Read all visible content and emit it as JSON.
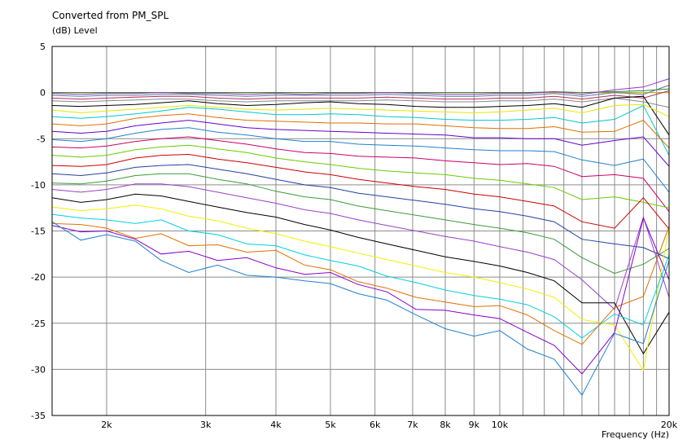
{
  "chart_data": {
    "type": "line",
    "title": "Converted from PM_SPL",
    "ylabel": "(dB)  Level",
    "xlabel": "Frequency  (Hz)",
    "xscale": "log",
    "xlim": [
      1600,
      20000
    ],
    "ylim": [
      -35,
      5
    ],
    "grid": true,
    "x_tick_labels": [
      {
        "value": 2000,
        "label": "2k"
      },
      {
        "value": 3000,
        "label": "3k"
      },
      {
        "value": 4000,
        "label": "4k"
      },
      {
        "value": 5000,
        "label": "5k"
      },
      {
        "value": 6000,
        "label": "6k"
      },
      {
        "value": 7000,
        "label": "7k"
      },
      {
        "value": 8000,
        "label": "8k"
      },
      {
        "value": 9000,
        "label": "9k"
      },
      {
        "value": 10000,
        "label": "10k"
      },
      {
        "value": 20000,
        "label": "20k"
      }
    ],
    "y_ticks": [
      5,
      0,
      -5,
      -10,
      -15,
      -20,
      -25,
      -30,
      -35
    ],
    "x": [
      1600,
      1800,
      2000,
      2250,
      2500,
      2800,
      3150,
      3550,
      4000,
      4500,
      5000,
      5600,
      6300,
      7100,
      8000,
      9000,
      10000,
      11200,
      12500,
      14000,
      16000,
      18000,
      20000
    ],
    "series": [
      {
        "name": "s1",
        "color": "#d4b000",
        "values": [
          0,
          0,
          0,
          0,
          0,
          0,
          0,
          0,
          0,
          0,
          0,
          0,
          0,
          0,
          0,
          0,
          0,
          0,
          0,
          0,
          0,
          0,
          0
        ]
      },
      {
        "name": "s2",
        "color": "#2a8a2a",
        "values": [
          0,
          0,
          0,
          0,
          0,
          0,
          0,
          0,
          0,
          0,
          0,
          0,
          0,
          0,
          0,
          0,
          0,
          0,
          0.1,
          0,
          0.1,
          0.2,
          0.4
        ]
      },
      {
        "name": "s3",
        "color": "#9933cc",
        "values": [
          -0.1,
          -0.2,
          -0.1,
          -0.1,
          0,
          -0.1,
          -0.1,
          -0.2,
          -0.1,
          -0.2,
          -0.1,
          -0.1,
          0,
          -0.1,
          -0.2,
          -0.2,
          -0.1,
          -0.1,
          0.1,
          -0.2,
          0.3,
          0.6,
          1.5
        ]
      },
      {
        "name": "s4",
        "color": "#5a7a9a",
        "values": [
          -0.3,
          -0.4,
          -0.3,
          -0.3,
          -0.2,
          -0.2,
          -0.3,
          -0.4,
          -0.3,
          -0.3,
          -0.3,
          -0.3,
          -0.2,
          -0.3,
          -0.4,
          -0.4,
          -0.3,
          -0.3,
          -0.1,
          -0.4,
          0,
          -0.2,
          0.8
        ]
      },
      {
        "name": "s5",
        "color": "#b03060",
        "values": [
          -0.6,
          -0.7,
          -0.6,
          -0.5,
          -0.4,
          -0.4,
          -0.6,
          -0.7,
          -0.6,
          -0.6,
          -0.6,
          -0.6,
          -0.5,
          -0.6,
          -0.7,
          -0.7,
          -0.6,
          -0.6,
          -0.4,
          -0.7,
          -0.3,
          -0.6,
          0.2
        ]
      },
      {
        "name": "s6",
        "color": "#888888",
        "values": [
          -0.9,
          -1.0,
          -0.9,
          -0.8,
          -0.7,
          -0.7,
          -0.9,
          -1.0,
          -0.9,
          -0.9,
          -0.9,
          -0.9,
          -0.8,
          -0.9,
          -1.0,
          -1.0,
          -0.9,
          -0.9,
          -0.7,
          -1.0,
          -0.6,
          -1.0,
          -1.6
        ]
      },
      {
        "name": "s7",
        "color": "#000000",
        "values": [
          -1.4,
          -1.5,
          -1.4,
          -1.3,
          -1.1,
          -0.9,
          -1.2,
          -1.4,
          -1.3,
          -1.1,
          -1.0,
          -1.2,
          -1.3,
          -1.5,
          -1.6,
          -1.6,
          -1.5,
          -1.4,
          -1.2,
          -1.6,
          -0.6,
          -0.4,
          -4.6
        ]
      },
      {
        "name": "s8",
        "color": "#e6e600",
        "values": [
          -1.9,
          -2.2,
          -2.0,
          -1.8,
          -1.6,
          -1.4,
          -1.6,
          -1.8,
          -1.9,
          -1.8,
          -1.7,
          -1.8,
          -1.9,
          -2.0,
          -2.1,
          -2.2,
          -2.1,
          -1.9,
          -1.7,
          -2.2,
          -1.4,
          -1.3,
          -2.6
        ]
      },
      {
        "name": "s9",
        "color": "#00c8d0",
        "values": [
          -2.6,
          -2.8,
          -2.6,
          -2.3,
          -2.0,
          -1.6,
          -1.8,
          -2.1,
          -2.4,
          -2.4,
          -2.3,
          -2.4,
          -2.6,
          -2.7,
          -2.9,
          -3.0,
          -3.0,
          -2.9,
          -2.7,
          -3.3,
          -2.9,
          -1.4,
          -6.8
        ]
      },
      {
        "name": "s10",
        "color": "#e07000",
        "values": [
          -3.4,
          -3.6,
          -3.4,
          -2.8,
          -2.5,
          -2.3,
          -2.7,
          -3.0,
          -3.1,
          -3.2,
          -3.3,
          -3.3,
          -3.4,
          -3.4,
          -3.6,
          -3.8,
          -3.9,
          -3.9,
          -3.7,
          -4.3,
          -4.2,
          -3.0,
          -6.0
        ]
      },
      {
        "name": "s11",
        "color": "#6600cc",
        "values": [
          -4.2,
          -4.4,
          -4.2,
          -3.6,
          -3.3,
          -3.0,
          -3.4,
          -3.8,
          -4.0,
          -4.1,
          -4.2,
          -4.3,
          -4.4,
          -4.5,
          -4.6,
          -4.9,
          -4.9,
          -5.0,
          -5.0,
          -5.7,
          -5.2,
          -4.8,
          -8.0
        ]
      },
      {
        "name": "s12",
        "color": "#2080d0",
        "values": [
          -5.1,
          -5.3,
          -5.0,
          -4.4,
          -4.0,
          -3.8,
          -4.3,
          -4.6,
          -5.0,
          -5.3,
          -5.3,
          -5.6,
          -5.7,
          -5.8,
          -6.0,
          -6.2,
          -6.3,
          -6.3,
          -6.4,
          -7.3,
          -7.9,
          -7.2,
          -10.8
        ]
      },
      {
        "name": "s13",
        "color": "#cc0066",
        "values": [
          -5.9,
          -6.0,
          -5.8,
          -5.3,
          -5.0,
          -4.8,
          -5.2,
          -5.6,
          -6.1,
          -6.5,
          -6.6,
          -6.9,
          -7.0,
          -7.1,
          -7.4,
          -7.6,
          -7.8,
          -7.7,
          -8.0,
          -9.1,
          -8.9,
          -9.3,
          -12.9
        ]
      },
      {
        "name": "s14",
        "color": "#66cc00",
        "values": [
          -6.8,
          -7.0,
          -6.8,
          -6.2,
          -5.9,
          -5.7,
          -6.1,
          -6.5,
          -7.1,
          -7.5,
          -7.8,
          -8.2,
          -8.5,
          -8.7,
          -8.9,
          -9.3,
          -9.5,
          -9.9,
          -10.3,
          -11.6,
          -11.3,
          -11.9,
          -12.5
        ]
      },
      {
        "name": "s15",
        "color": "#cc0000",
        "values": [
          -7.9,
          -8.0,
          -7.8,
          -7.1,
          -6.8,
          -6.7,
          -7.2,
          -7.6,
          -8.1,
          -8.6,
          -8.9,
          -9.4,
          -9.8,
          -10.2,
          -10.5,
          -11.0,
          -11.3,
          -11.8,
          -12.3,
          -14.0,
          -14.7,
          -11.4,
          -14.8
        ]
      },
      {
        "name": "s16",
        "color": "#2040a0",
        "values": [
          -8.8,
          -9.0,
          -8.7,
          -8.1,
          -7.9,
          -7.8,
          -8.3,
          -8.8,
          -9.4,
          -10.0,
          -10.3,
          -10.9,
          -11.3,
          -11.7,
          -12.1,
          -12.6,
          -12.9,
          -13.4,
          -14.0,
          -15.9,
          -16.4,
          -16.8,
          -18.0
        ]
      },
      {
        "name": "s17",
        "color": "#3a9a3a",
        "values": [
          -9.8,
          -9.9,
          -9.6,
          -9.0,
          -8.8,
          -8.8,
          -9.4,
          -9.9,
          -10.7,
          -11.3,
          -11.6,
          -12.3,
          -12.8,
          -13.3,
          -13.8,
          -14.3,
          -14.7,
          -15.2,
          -15.9,
          -17.9,
          -19.6,
          -18.6,
          -16.9
        ]
      },
      {
        "name": "s18",
        "color": "#9a40c8",
        "values": [
          -10.5,
          -10.8,
          -10.5,
          -9.9,
          -9.9,
          -10.2,
          -10.8,
          -11.4,
          -12.0,
          -12.7,
          -13.1,
          -13.8,
          -14.4,
          -15.0,
          -15.6,
          -16.1,
          -16.7,
          -17.3,
          -18.1,
          -20.3,
          -23.5,
          -13.5,
          -22.2
        ]
      },
      {
        "name": "s19",
        "color": "#000000",
        "values": [
          -11.4,
          -11.9,
          -11.6,
          -11.0,
          -11.2,
          -11.8,
          -12.4,
          -13.0,
          -13.5,
          -14.3,
          -14.9,
          -15.7,
          -16.4,
          -17.1,
          -17.8,
          -18.3,
          -18.8,
          -19.5,
          -20.4,
          -22.8,
          -22.8,
          -28.3,
          -23.8
        ]
      },
      {
        "name": "s20",
        "color": "#f0f000",
        "values": [
          -12.4,
          -12.8,
          -12.6,
          -12.2,
          -12.6,
          -13.4,
          -13.9,
          -14.7,
          -15.3,
          -16.1,
          -16.7,
          -17.4,
          -18.1,
          -18.8,
          -19.5,
          -20.0,
          -20.6,
          -21.3,
          -22.2,
          -24.6,
          -25.2,
          -30.1,
          -14.6
        ]
      },
      {
        "name": "s21",
        "color": "#00d0e0",
        "values": [
          -13.2,
          -13.6,
          -13.8,
          -14.2,
          -13.8,
          -15.0,
          -15.4,
          -16.4,
          -16.6,
          -17.6,
          -18.2,
          -18.8,
          -19.9,
          -20.6,
          -21.4,
          -22.0,
          -22.4,
          -23.0,
          -24.3,
          -26.6,
          -24.0,
          -25.2,
          -17.6
        ]
      },
      {
        "name": "s22",
        "color": "#e07000",
        "values": [
          -14.2,
          -14.3,
          -14.7,
          -15.8,
          -15.3,
          -16.6,
          -16.5,
          -17.3,
          -17.1,
          -18.7,
          -19.2,
          -20.5,
          -21.2,
          -22.2,
          -22.7,
          -23.2,
          -23.1,
          -24.1,
          -25.8,
          -27.3,
          -23.3,
          -22.1,
          -14.5
        ]
      },
      {
        "name": "s23",
        "color": "#8800cc",
        "values": [
          -14.4,
          -15.1,
          -15.0,
          -15.9,
          -17.5,
          -17.2,
          -18.2,
          -17.9,
          -19.0,
          -19.7,
          -19.5,
          -20.8,
          -21.6,
          -23.5,
          -23.6,
          -24.1,
          -24.5,
          -26.0,
          -27.4,
          -30.5,
          -26.0,
          -13.6,
          -20.3
        ]
      },
      {
        "name": "s24",
        "color": "#2080d0",
        "values": [
          -14.0,
          -16.0,
          -15.4,
          -16.1,
          -18.2,
          -19.5,
          -18.7,
          -19.8,
          -20.0,
          -20.4,
          -20.7,
          -21.8,
          -22.5,
          -24.1,
          -25.6,
          -26.4,
          -25.8,
          -27.8,
          -28.9,
          -32.8,
          -26.1,
          -27.2,
          -18.2
        ]
      }
    ]
  }
}
